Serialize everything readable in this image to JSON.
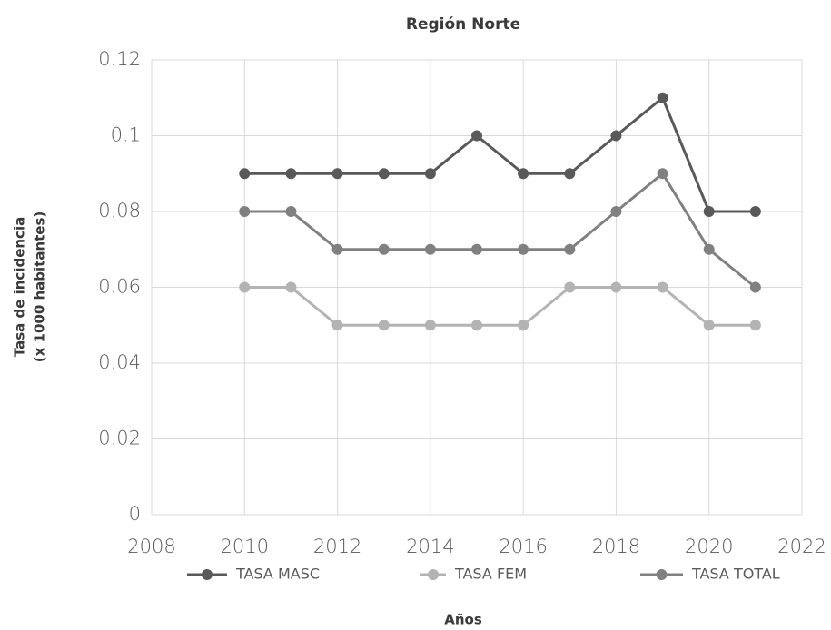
{
  "chart_data": {
    "type": "line",
    "title": "Región Norte",
    "x": [
      2010,
      2011,
      2012,
      2013,
      2014,
      2015,
      2016,
      2017,
      2018,
      2019,
      2020,
      2021
    ],
    "series": [
      {
        "name": "TASA MASC",
        "color": "#595959",
        "values": [
          0.09,
          0.09,
          0.09,
          0.09,
          0.09,
          0.1,
          0.09,
          0.09,
          0.1,
          0.11,
          0.08,
          0.08
        ]
      },
      {
        "name": "TASA FEM",
        "color": "#b3b3b3",
        "values": [
          0.06,
          0.06,
          0.05,
          0.05,
          0.05,
          0.05,
          0.05,
          0.06,
          0.06,
          0.06,
          0.05,
          0.05
        ]
      },
      {
        "name": "TASA TOTAL",
        "color": "#808080",
        "values": [
          0.08,
          0.08,
          0.07,
          0.07,
          0.07,
          0.07,
          0.07,
          0.07,
          0.08,
          0.09,
          0.07,
          0.06
        ]
      }
    ],
    "xlim": [
      2008,
      2022
    ],
    "xticks": [
      2008,
      2010,
      2012,
      2014,
      2016,
      2018,
      2020,
      2022
    ],
    "ylim": [
      0,
      0.12
    ],
    "yticks": [
      0,
      0.02,
      0.04,
      0.06,
      0.08,
      0.1,
      0.12
    ],
    "xlabel": "Años",
    "ylabel": [
      "Tasa de incidencia",
      "(x 1000 habitantes)"
    ],
    "grid": true,
    "legend": "bottom"
  }
}
